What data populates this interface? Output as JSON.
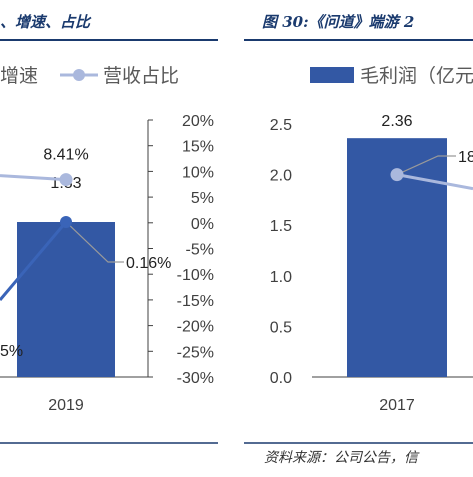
{
  "left_panel": {
    "title": "、增速、占比",
    "legend": {
      "growth_label": "增速",
      "share_label": "营收占比"
    }
  },
  "right_panel": {
    "title": "图 30:《问道》端游 2",
    "legend": {
      "gross_profit_label": "毛利润（亿元"
    },
    "source": "资料来源：公司公告，信"
  },
  "colors": {
    "bar": "#3358a4",
    "growth_line": "#3a64b8",
    "share_line": "#aab8dd",
    "title": "#1a3a6e",
    "rule": "#1a3a6e"
  },
  "chart_data": [
    {
      "type": "bar",
      "title": "、增速、占比",
      "categories": [
        "2019"
      ],
      "series": [
        {
          "name": "",
          "type": "bar",
          "axis": "left",
          "values": [
            1.83
          ]
        },
        {
          "name": "增速",
          "type": "line",
          "axis": "right",
          "values": [
            0.16
          ],
          "value_labels": [
            "0.16%"
          ]
        },
        {
          "name": "营收占比",
          "type": "line",
          "axis": "right",
          "values": [
            8.41
          ],
          "value_labels": [
            "8.41%"
          ]
        }
      ],
      "bar_value_labels": [
        "1.83"
      ],
      "partial_label": "5%",
      "y2_ticks": [
        "20%",
        "15%",
        "10%",
        "5%",
        "0%",
        "-5%",
        "-10%",
        "-15%",
        "-20%",
        "-25%",
        "-30%"
      ],
      "y2lim": [
        -30,
        20
      ],
      "grid": false,
      "legend": "top"
    },
    {
      "type": "bar",
      "title": "图 30:《问道》端游 2",
      "categories": [
        "2017"
      ],
      "series": [
        {
          "name": "毛利润（亿元",
          "type": "bar",
          "axis": "left",
          "values": [
            2.36
          ]
        },
        {
          "name": "",
          "type": "line",
          "axis": "right",
          "values": [
            null
          ],
          "partial_label": "18"
        }
      ],
      "bar_value_labels": [
        "2.36"
      ],
      "y_ticks": [
        "0.0",
        "0.5",
        "1.0",
        "1.5",
        "2.0",
        "2.5"
      ],
      "ylim": [
        0,
        2.5
      ],
      "grid": false,
      "legend": "top"
    }
  ]
}
